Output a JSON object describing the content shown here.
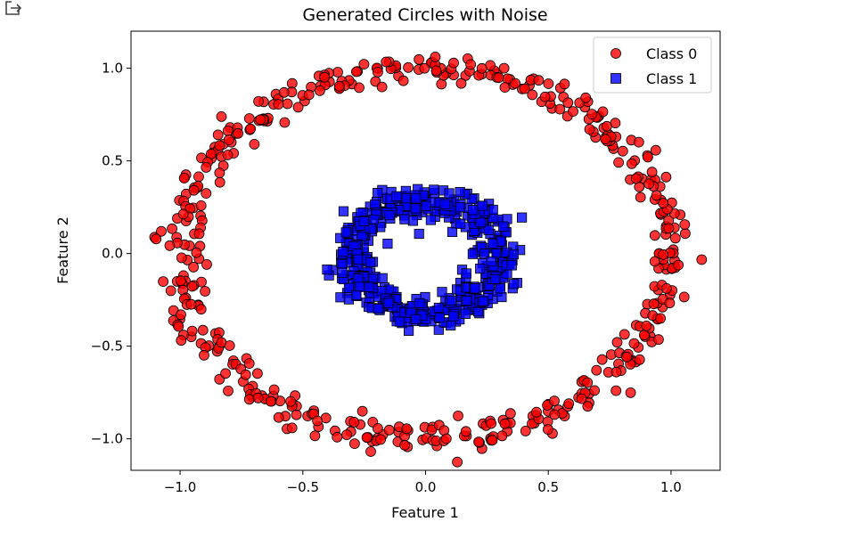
{
  "chart_data": {
    "type": "scatter",
    "title": "Generated Circles with Noise",
    "xlabel": "Feature 1",
    "ylabel": "Feature 2",
    "xlim": [
      -1.2,
      1.2
    ],
    "ylim": [
      -1.17,
      1.2
    ],
    "xticks": [
      -1.0,
      -0.5,
      0.0,
      0.5,
      1.0
    ],
    "xtick_labels": [
      "−1.0",
      "−0.5",
      "0.0",
      "0.5",
      "1.0"
    ],
    "yticks": [
      -1.0,
      -0.5,
      0.0,
      0.5,
      1.0
    ],
    "ytick_labels": [
      "−1.0",
      "−0.5",
      "0.0",
      "0.5",
      "1.0"
    ],
    "grid": false,
    "legend_position": "top-right",
    "series": [
      {
        "name": "Class 0",
        "marker": "circle",
        "color": "#ff0000",
        "edge_color": "#000000",
        "n_points": 500,
        "pattern": "ring",
        "center": [
          0,
          0
        ],
        "radius": 1.0,
        "noise": 0.045
      },
      {
        "name": "Class 1",
        "marker": "square",
        "color": "#0000ff",
        "edge_color": "#000000",
        "n_points": 500,
        "pattern": "ring",
        "center": [
          0,
          -0.02
        ],
        "radius": 0.3,
        "noise": 0.045
      }
    ]
  },
  "legend": {
    "class0": "Class 0",
    "class1": "Class 1"
  }
}
